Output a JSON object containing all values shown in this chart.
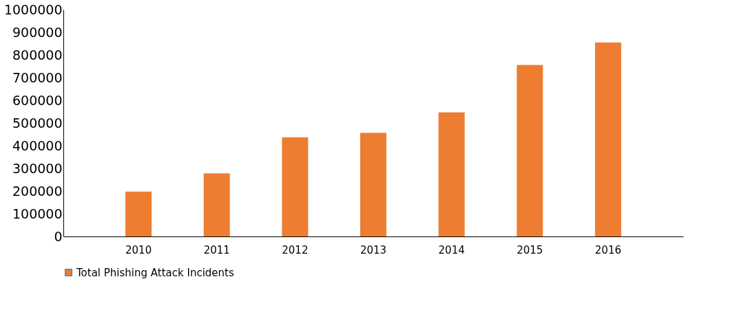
{
  "chart_data": {
    "type": "bar",
    "categories": [
      "2010",
      "2011",
      "2012",
      "2013",
      "2014",
      "2015",
      "2016"
    ],
    "series": [
      {
        "name": "Total Phishing Attack Incidents",
        "color": "#ed7d31",
        "values": [
          198000,
          278000,
          437000,
          457000,
          547000,
          756000,
          855000
        ]
      }
    ],
    "ylim": [
      0,
      1000000
    ],
    "yticks": [
      0,
      100000,
      200000,
      300000,
      400000,
      500000,
      600000,
      700000,
      800000,
      900000,
      1000000
    ],
    "grid": false,
    "legend": "bottom"
  }
}
